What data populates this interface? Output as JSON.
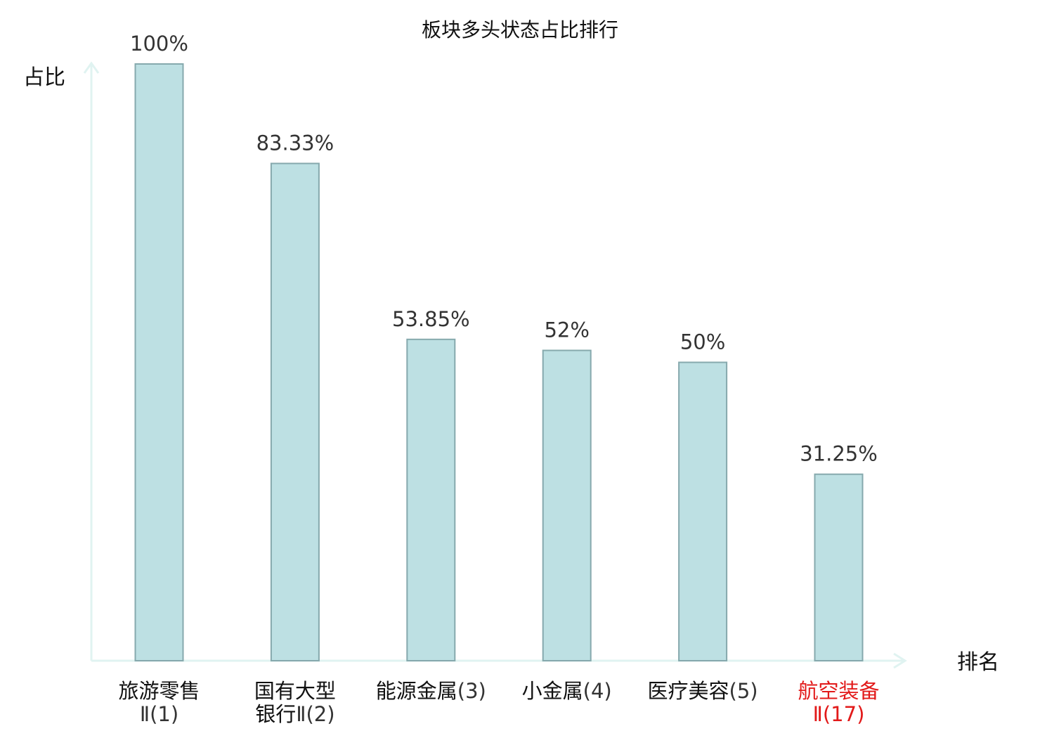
{
  "chart_data": {
    "type": "bar",
    "title": "板块多头状态占比排行",
    "ylabel": "占比",
    "xlabel": "排名",
    "ylim": [
      0,
      100
    ],
    "grid": false,
    "categories": [
      {
        "name": "旅游零售",
        "suffix": "Ⅱ",
        "rank": "(1)",
        "highlight": false
      },
      {
        "name": "国有大型",
        "name2": "银行",
        "suffix": "Ⅱ",
        "rank": "(2)",
        "highlight": false
      },
      {
        "name": "能源金属",
        "suffix": "",
        "rank": "(3)",
        "highlight": false
      },
      {
        "name": "小金属",
        "suffix": "",
        "rank": "(4)",
        "highlight": false
      },
      {
        "name": "医疗美容",
        "suffix": "",
        "rank": "(5)",
        "highlight": false
      },
      {
        "name": "航空装备",
        "suffix": "Ⅱ",
        "rank": "(17)",
        "highlight": true
      }
    ],
    "values": [
      100,
      83.33,
      53.85,
      52,
      50,
      31.25
    ],
    "value_labels": [
      "100%",
      "83.33%",
      "53.85%",
      "52%",
      "50%",
      "31.25%"
    ],
    "colors": {
      "bar_fill": "#bde0e3",
      "bar_stroke": "#86a9ad",
      "axis": "#e0f3f1",
      "highlight": "#e21a1a"
    }
  }
}
